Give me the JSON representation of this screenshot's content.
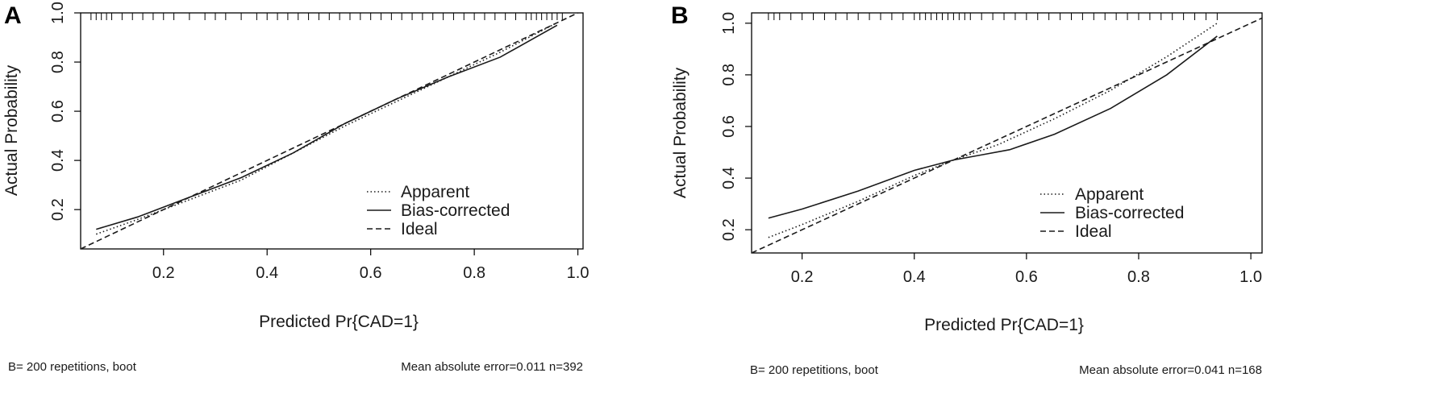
{
  "chart_data": [
    {
      "type": "line",
      "panel_label": "A",
      "xlabel": "Predicted Pr{CAD=1}",
      "ylabel": "Actual Probability",
      "xlim": [
        0.04,
        1.01
      ],
      "ylim": [
        0.04,
        1.0
      ],
      "xticks": [
        0.2,
        0.4,
        0.6,
        0.8,
        1.0
      ],
      "yticks": [
        0.2,
        0.4,
        0.6,
        0.8,
        1.0
      ],
      "xtick_labels": [
        "0.2",
        "0.4",
        "0.6",
        "0.8",
        "1.0"
      ],
      "ytick_labels": [
        "0.2",
        "0.4",
        "0.6",
        "0.8",
        "1.0"
      ],
      "grid": false,
      "legend_position": "bottom-right",
      "series": [
        {
          "name": "Apparent",
          "style": "dotted",
          "x": [
            0.07,
            0.15,
            0.25,
            0.35,
            0.45,
            0.55,
            0.65,
            0.75,
            0.85,
            0.96
          ],
          "y": [
            0.1,
            0.16,
            0.24,
            0.32,
            0.43,
            0.54,
            0.64,
            0.74,
            0.84,
            0.96
          ]
        },
        {
          "name": "Bias-corrected",
          "style": "solid",
          "x": [
            0.07,
            0.15,
            0.25,
            0.35,
            0.45,
            0.55,
            0.65,
            0.75,
            0.85,
            0.96
          ],
          "y": [
            0.12,
            0.17,
            0.25,
            0.33,
            0.43,
            0.55,
            0.65,
            0.74,
            0.82,
            0.95
          ]
        },
        {
          "name": "Ideal",
          "style": "dashed",
          "x": [
            0.04,
            1.0
          ],
          "y": [
            0.04,
            1.0
          ]
        }
      ],
      "rug_x": [
        0.06,
        0.07,
        0.08,
        0.09,
        0.1,
        0.12,
        0.14,
        0.16,
        0.18,
        0.2,
        0.22,
        0.25,
        0.28,
        0.3,
        0.32,
        0.35,
        0.38,
        0.4,
        0.42,
        0.44,
        0.46,
        0.48,
        0.5,
        0.52,
        0.54,
        0.56,
        0.58,
        0.6,
        0.62,
        0.64,
        0.66,
        0.68,
        0.7,
        0.72,
        0.74,
        0.76,
        0.78,
        0.8,
        0.82,
        0.84,
        0.86,
        0.88,
        0.9,
        0.91,
        0.92,
        0.93,
        0.94,
        0.95,
        0.96,
        0.97
      ],
      "footnote_left": "B= 200 repetitions, boot",
      "footnote_right": "Mean absolute error=0.011 n=392"
    },
    {
      "type": "line",
      "panel_label": "B",
      "xlabel": "Predicted Pr{CAD=1}",
      "ylabel": "Actual Probability",
      "xlim": [
        0.11,
        1.02
      ],
      "ylim": [
        0.11,
        1.04
      ],
      "xticks": [
        0.2,
        0.4,
        0.6,
        0.8,
        1.0
      ],
      "yticks": [
        0.2,
        0.4,
        0.6,
        0.8,
        1.0
      ],
      "xtick_labels": [
        "0.2",
        "0.4",
        "0.6",
        "0.8",
        "1.0"
      ],
      "ytick_labels": [
        "0.2",
        "0.4",
        "0.6",
        "0.8",
        "1.0"
      ],
      "grid": false,
      "legend_position": "bottom-right",
      "series": [
        {
          "name": "Apparent",
          "style": "dotted",
          "x": [
            0.14,
            0.2,
            0.3,
            0.4,
            0.47,
            0.55,
            0.65,
            0.75,
            0.85,
            0.94
          ],
          "y": [
            0.17,
            0.22,
            0.31,
            0.41,
            0.47,
            0.53,
            0.63,
            0.74,
            0.87,
            1.0
          ]
        },
        {
          "name": "Bias-corrected",
          "style": "solid",
          "x": [
            0.14,
            0.2,
            0.3,
            0.4,
            0.47,
            0.52,
            0.57,
            0.65,
            0.75,
            0.85,
            0.94
          ],
          "y": [
            0.245,
            0.28,
            0.35,
            0.43,
            0.47,
            0.49,
            0.51,
            0.57,
            0.67,
            0.8,
            0.95
          ]
        },
        {
          "name": "Ideal",
          "style": "dashed",
          "x": [
            0.11,
            1.02
          ],
          "y": [
            0.11,
            1.02
          ]
        }
      ],
      "rug_x": [
        0.14,
        0.15,
        0.16,
        0.18,
        0.2,
        0.22,
        0.24,
        0.26,
        0.28,
        0.3,
        0.32,
        0.34,
        0.36,
        0.38,
        0.4,
        0.41,
        0.42,
        0.43,
        0.44,
        0.45,
        0.46,
        0.47,
        0.48,
        0.49,
        0.5,
        0.52,
        0.54,
        0.56,
        0.58,
        0.6,
        0.62,
        0.64,
        0.66,
        0.68,
        0.7,
        0.72,
        0.74,
        0.76,
        0.78,
        0.8,
        0.82,
        0.84,
        0.86,
        0.88,
        0.9,
        0.92,
        0.94
      ],
      "footnote_left": "B= 200 repetitions, boot",
      "footnote_right": "Mean absolute error=0.041 n=168"
    }
  ]
}
